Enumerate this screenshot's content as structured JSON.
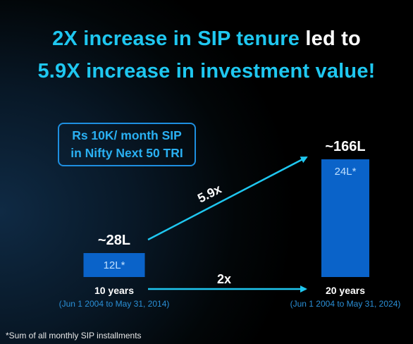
{
  "title": {
    "line1_accent": "2X increase in SIP tenure",
    "line1_white": " led to",
    "line2_accent": "5.9X increase in investment value!"
  },
  "info_box": {
    "line1": "Rs 10K/ month SIP",
    "line2": "in Nifty Next 50 TRI"
  },
  "chart_data": {
    "type": "bar",
    "categories": [
      "10 years",
      "20 years"
    ],
    "category_sublabels": [
      "(Jun 1 2004 to May 31, 2014)",
      "(Jun 1 2004 to May 31, 2024)"
    ],
    "series": [
      {
        "values": [
          28,
          166
        ],
        "labels": [
          "~28L",
          "~166L"
        ]
      },
      {
        "values": [
          12,
          24
        ],
        "labels": [
          "12L*",
          "24L*"
        ]
      }
    ],
    "annotations": [
      {
        "text": "5.9x",
        "from": "10 years",
        "to": "20 years",
        "measure": "investment value"
      },
      {
        "text": "2x",
        "from": "10 years",
        "to": "20 years",
        "measure": "tenure"
      }
    ],
    "unit": "L",
    "ylim": [
      0,
      166
    ]
  },
  "footnote": "*Sum of all monthly SIP installments",
  "colors": {
    "accent": "#1fc7f0",
    "bar": "#0a63c9",
    "arrow": "#1fc7f0",
    "sublabel": "#2a8fd6",
    "background": "#081827"
  }
}
